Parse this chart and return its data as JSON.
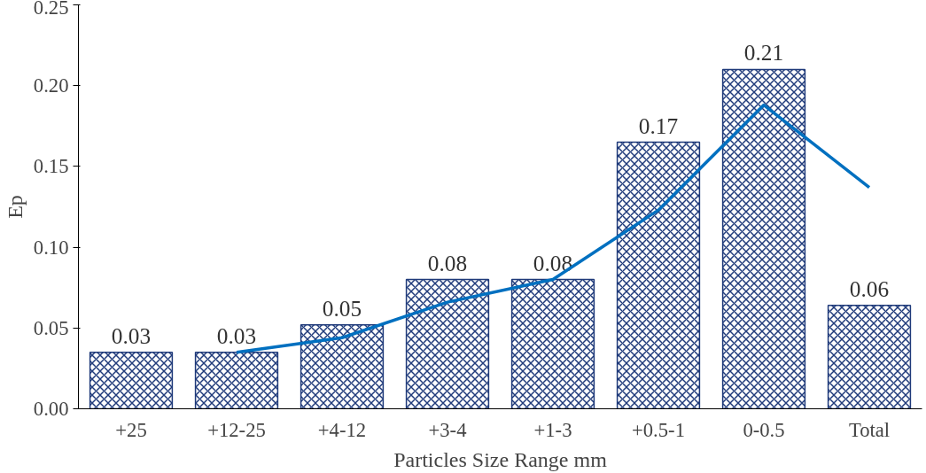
{
  "chart_data": {
    "type": "bar",
    "xlabel": "Particles Size Range mm",
    "ylabel": "Ep",
    "categories": [
      "+25",
      "+12-25",
      "+4-12",
      "+3-4",
      "+1-3",
      "+0.5-1",
      "0-0.5",
      "Total"
    ],
    "ylim": [
      0,
      0.25
    ],
    "yticks": [
      {
        "value": 0,
        "label": "0.00"
      },
      {
        "value": 0.05,
        "label": "0.05"
      },
      {
        "value": 0.1,
        "label": "0.10"
      },
      {
        "value": 0.15,
        "label": "0.15"
      },
      {
        "value": 0.2,
        "label": "0.20"
      },
      {
        "value": 0.25,
        "label": "0.25"
      }
    ],
    "grid": false,
    "series": [
      {
        "color": "#1f3a7a",
        "values": [
          0.035,
          0.035,
          0.052,
          0.08,
          0.08,
          0.165,
          0.21,
          0.064
        ],
        "value_labels": [
          "0.03",
          "0.03",
          "0.05",
          "0.08",
          "0.08",
          "0.17",
          "0.21",
          "0.06"
        ]
      },
      {
        "type": "line",
        "color": "#0070c0",
        "values": [
          null,
          0.035,
          0.044,
          0.066,
          0.08,
          0.123,
          0.188,
          0.137
        ]
      }
    ]
  }
}
